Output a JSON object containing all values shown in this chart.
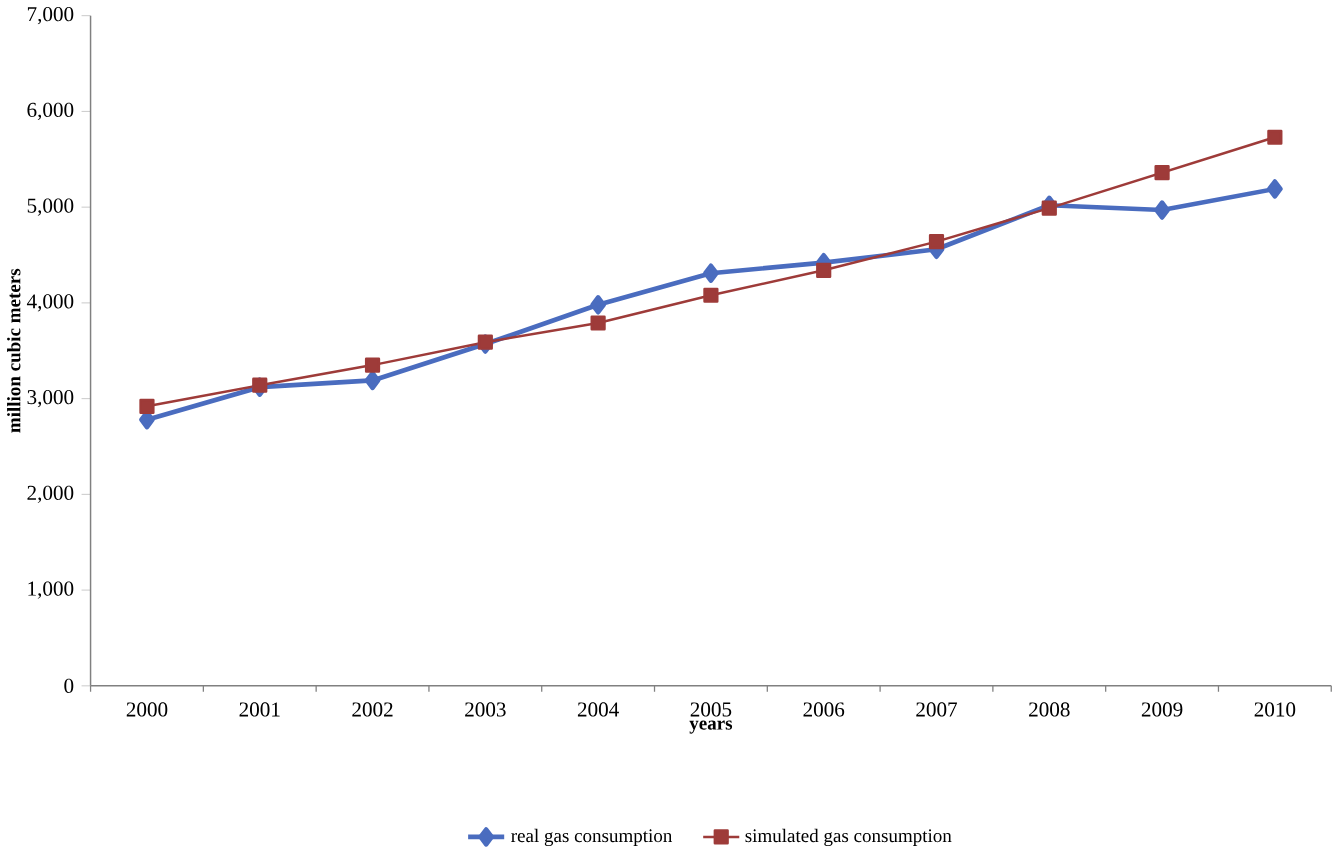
{
  "chart_data": {
    "type": "line",
    "xlabel": "years",
    "ylabel": "million cubic meters",
    "categories": [
      "2000",
      "2001",
      "2002",
      "2003",
      "2004",
      "2005",
      "2006",
      "2007",
      "2008",
      "2009",
      "2010"
    ],
    "series": [
      {
        "name": "real gas consumption",
        "color": "#4a6cbf",
        "marker": "diamond",
        "values": [
          2780,
          3120,
          3190,
          3570,
          3980,
          4310,
          4420,
          4560,
          5020,
          4970,
          5190
        ]
      },
      {
        "name": "simulated gas consumption",
        "color": "#9e3b39",
        "marker": "square",
        "values": [
          2920,
          3140,
          3350,
          3590,
          3790,
          4080,
          4340,
          4640,
          4990,
          5360,
          5730
        ]
      }
    ],
    "ylim": [
      0,
      7000
    ],
    "yticks": [
      {
        "value": 0,
        "label": "0"
      },
      {
        "value": 1000,
        "label": "1,000"
      },
      {
        "value": 2000,
        "label": "2,000"
      },
      {
        "value": 3000,
        "label": "3,000"
      },
      {
        "value": 4000,
        "label": "4,000"
      },
      {
        "value": 5000,
        "label": "5,000"
      },
      {
        "value": 6000,
        "label": "6,000"
      },
      {
        "value": 7000,
        "label": "7,000"
      }
    ],
    "grid": false,
    "legend": "bottom"
  }
}
